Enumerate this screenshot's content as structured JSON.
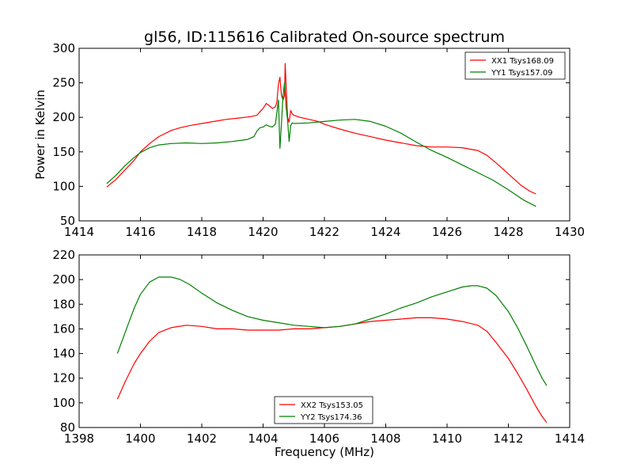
{
  "title": "gl56, ID:115616 Calibrated On-source spectrum",
  "chart_data": [
    {
      "type": "line",
      "ylabel": "Power in Kelvin",
      "xlabel": "",
      "xlim": [
        1414,
        1430
      ],
      "ylim": [
        50,
        300
      ],
      "xticks": [
        1414,
        1416,
        1418,
        1420,
        1422,
        1424,
        1426,
        1428,
        1430
      ],
      "yticks": [
        50,
        100,
        150,
        200,
        250,
        300
      ],
      "legend_position": "top-right",
      "series": [
        {
          "name": "XX1 Tsys168.09",
          "color": "#ff0000",
          "points": [
            [
              1414.9,
              99
            ],
            [
              1415.2,
              110
            ],
            [
              1415.5,
              124
            ],
            [
              1415.8,
              138
            ],
            [
              1416.0,
              150
            ],
            [
              1416.3,
              162
            ],
            [
              1416.6,
              172
            ],
            [
              1417.0,
              181
            ],
            [
              1417.3,
              185
            ],
            [
              1417.6,
              188
            ],
            [
              1418.0,
              191
            ],
            [
              1418.4,
              194
            ],
            [
              1418.8,
              197
            ],
            [
              1419.2,
              199
            ],
            [
              1419.6,
              201
            ],
            [
              1419.8,
              203
            ],
            [
              1419.9,
              208
            ],
            [
              1420.0,
              213
            ],
            [
              1420.1,
              220
            ],
            [
              1420.2,
              217
            ],
            [
              1420.3,
              213
            ],
            [
              1420.4,
              215
            ],
            [
              1420.45,
              222
            ],
            [
              1420.5,
              248
            ],
            [
              1420.55,
              258
            ],
            [
              1420.6,
              232
            ],
            [
              1420.65,
              225
            ],
            [
              1420.7,
              232
            ],
            [
              1420.72,
              278
            ],
            [
              1420.75,
              245
            ],
            [
              1420.8,
              200
            ],
            [
              1420.85,
              193
            ],
            [
              1420.9,
              210
            ],
            [
              1420.95,
              205
            ],
            [
              1421.0,
              203
            ],
            [
              1421.2,
              200
            ],
            [
              1421.5,
              197
            ],
            [
              1421.8,
              194
            ],
            [
              1422.0,
              190
            ],
            [
              1422.5,
              183
            ],
            [
              1423.0,
              177
            ],
            [
              1423.5,
              172
            ],
            [
              1424.0,
              167
            ],
            [
              1424.5,
              163
            ],
            [
              1425.0,
              159
            ],
            [
              1425.5,
              157
            ],
            [
              1426.0,
              157
            ],
            [
              1426.5,
              156
            ],
            [
              1427.0,
              152
            ],
            [
              1427.3,
              145
            ],
            [
              1427.6,
              134
            ],
            [
              1428.0,
              118
            ],
            [
              1428.4,
              102
            ],
            [
              1428.7,
              93
            ],
            [
              1428.9,
              89
            ]
          ]
        },
        {
          "name": "YY1 Tsys157.09",
          "color": "#008000",
          "points": [
            [
              1414.9,
              104
            ],
            [
              1415.2,
              116
            ],
            [
              1415.5,
              130
            ],
            [
              1415.8,
              142
            ],
            [
              1416.0,
              149
            ],
            [
              1416.3,
              156
            ],
            [
              1416.6,
              160
            ],
            [
              1417.0,
              162
            ],
            [
              1417.5,
              163
            ],
            [
              1418.0,
              162
            ],
            [
              1418.5,
              163
            ],
            [
              1419.0,
              165
            ],
            [
              1419.5,
              168
            ],
            [
              1419.7,
              172
            ],
            [
              1419.8,
              180
            ],
            [
              1419.9,
              185
            ],
            [
              1420.0,
              186
            ],
            [
              1420.1,
              189
            ],
            [
              1420.2,
              187
            ],
            [
              1420.3,
              186
            ],
            [
              1420.4,
              190
            ],
            [
              1420.5,
              225
            ],
            [
              1420.55,
              155
            ],
            [
              1420.6,
              190
            ],
            [
              1420.65,
              232
            ],
            [
              1420.7,
              250
            ],
            [
              1420.75,
              215
            ],
            [
              1420.8,
              195
            ],
            [
              1420.85,
              165
            ],
            [
              1420.9,
              188
            ],
            [
              1420.95,
              192
            ],
            [
              1421.0,
              191
            ],
            [
              1421.5,
              192
            ],
            [
              1422.0,
              194
            ],
            [
              1422.5,
              196
            ],
            [
              1423.0,
              197
            ],
            [
              1423.5,
              194
            ],
            [
              1424.0,
              187
            ],
            [
              1424.5,
              177
            ],
            [
              1425.0,
              164
            ],
            [
              1425.5,
              152
            ],
            [
              1426.0,
              142
            ],
            [
              1426.5,
              131
            ],
            [
              1427.0,
              120
            ],
            [
              1427.5,
              109
            ],
            [
              1428.0,
              95
            ],
            [
              1428.5,
              80
            ],
            [
              1428.9,
              71
            ]
          ]
        }
      ]
    },
    {
      "type": "line",
      "ylabel": "",
      "xlabel": "Frequency (MHz)",
      "xlim": [
        1398,
        1414
      ],
      "ylim": [
        80,
        220
      ],
      "xticks": [
        1398,
        1400,
        1402,
        1404,
        1406,
        1408,
        1410,
        1412,
        1414
      ],
      "yticks": [
        80,
        100,
        120,
        140,
        160,
        180,
        200,
        220
      ],
      "legend_position": "bottom-center",
      "series": [
        {
          "name": "XX2 Tsys153.05",
          "color": "#ff0000",
          "points": [
            [
              1399.25,
              103
            ],
            [
              1399.5,
              117
            ],
            [
              1399.8,
              132
            ],
            [
              1400.0,
              140
            ],
            [
              1400.3,
              150
            ],
            [
              1400.6,
              157
            ],
            [
              1401.0,
              161
            ],
            [
              1401.5,
              163
            ],
            [
              1402.0,
              162
            ],
            [
              1402.5,
              160
            ],
            [
              1403.0,
              160
            ],
            [
              1403.5,
              159
            ],
            [
              1404.0,
              159
            ],
            [
              1404.5,
              159
            ],
            [
              1405.0,
              160
            ],
            [
              1405.5,
              160
            ],
            [
              1406.0,
              161
            ],
            [
              1406.5,
              162
            ],
            [
              1407.0,
              164
            ],
            [
              1407.5,
              166
            ],
            [
              1408.0,
              167
            ],
            [
              1408.5,
              168
            ],
            [
              1409.0,
              169
            ],
            [
              1409.5,
              169
            ],
            [
              1410.0,
              168
            ],
            [
              1410.5,
              166
            ],
            [
              1411.0,
              163
            ],
            [
              1411.3,
              158
            ],
            [
              1411.6,
              149
            ],
            [
              1412.0,
              136
            ],
            [
              1412.3,
              124
            ],
            [
              1412.6,
              111
            ],
            [
              1412.9,
              97
            ],
            [
              1413.1,
              89
            ],
            [
              1413.25,
              84
            ]
          ]
        },
        {
          "name": "YY2 Tsys174.36",
          "color": "#008000",
          "points": [
            [
              1399.25,
              140
            ],
            [
              1399.5,
              157
            ],
            [
              1399.8,
              177
            ],
            [
              1400.0,
              188
            ],
            [
              1400.3,
              198
            ],
            [
              1400.6,
              202
            ],
            [
              1401.0,
              202
            ],
            [
              1401.3,
              200
            ],
            [
              1401.6,
              196
            ],
            [
              1402.0,
              189
            ],
            [
              1402.5,
              181
            ],
            [
              1403.0,
              175
            ],
            [
              1403.5,
              170
            ],
            [
              1404.0,
              167
            ],
            [
              1404.5,
              165
            ],
            [
              1405.0,
              163
            ],
            [
              1405.5,
              162
            ],
            [
              1406.0,
              161
            ],
            [
              1406.5,
              162
            ],
            [
              1407.0,
              164
            ],
            [
              1407.5,
              168
            ],
            [
              1408.0,
              172
            ],
            [
              1408.5,
              177
            ],
            [
              1409.0,
              181
            ],
            [
              1409.5,
              186
            ],
            [
              1410.0,
              190
            ],
            [
              1410.5,
              194
            ],
            [
              1410.8,
              195
            ],
            [
              1411.0,
              195
            ],
            [
              1411.3,
              193
            ],
            [
              1411.6,
              187
            ],
            [
              1412.0,
              174
            ],
            [
              1412.3,
              161
            ],
            [
              1412.6,
              146
            ],
            [
              1412.9,
              130
            ],
            [
              1413.1,
              120
            ],
            [
              1413.25,
              114
            ]
          ]
        }
      ]
    }
  ]
}
